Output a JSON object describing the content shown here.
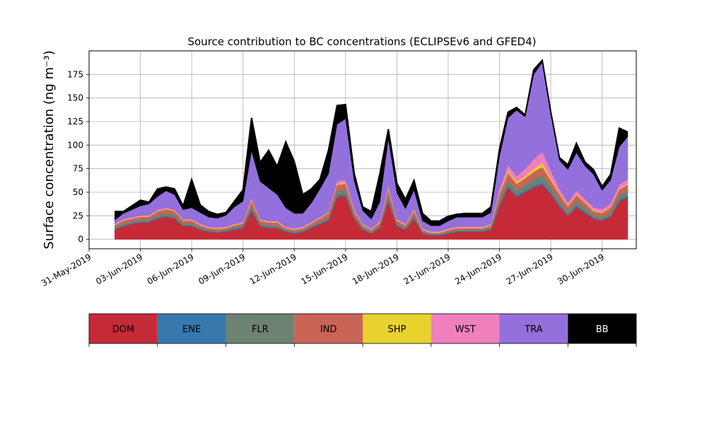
{
  "chart_data": {
    "type": "area",
    "stacked": true,
    "title": "Source contribution to BC concentrations (ECLIPSEv6 and GFED4)",
    "xlabel": "",
    "ylabel": "Surface concentration (ng m⁻³)",
    "ylim": [
      -10,
      200
    ],
    "xlim": [
      "2019-05-31",
      "2019-07-02"
    ],
    "grid": true,
    "legend_placement": "bottom (separate color bar)",
    "x_tick_labels": [
      "31-May-2019",
      "03-Jun-2019",
      "06-Jun-2019",
      "09-Jun-2019",
      "12-Jun-2019",
      "15-Jun-2019",
      "18-Jun-2019",
      "21-Jun-2019",
      "24-Jun-2019",
      "27-Jun-2019",
      "30-Jun-2019"
    ],
    "y_ticks": [
      0,
      25,
      50,
      75,
      100,
      125,
      150,
      175
    ],
    "x": [
      "2019-06-01T12",
      "2019-06-02T00",
      "2019-06-02T12",
      "2019-06-03T00",
      "2019-06-03T12",
      "2019-06-04T00",
      "2019-06-04T12",
      "2019-06-05T00",
      "2019-06-05T12",
      "2019-06-06T00",
      "2019-06-06T12",
      "2019-06-07T00",
      "2019-06-07T12",
      "2019-06-08T00",
      "2019-06-08T12",
      "2019-06-09T00",
      "2019-06-09T12",
      "2019-06-10T00",
      "2019-06-10T12",
      "2019-06-11T00",
      "2019-06-11T12",
      "2019-06-12T00",
      "2019-06-12T12",
      "2019-06-13T00",
      "2019-06-13T12",
      "2019-06-14T00",
      "2019-06-14T12",
      "2019-06-15T00",
      "2019-06-15T12",
      "2019-06-16T00",
      "2019-06-16T12",
      "2019-06-17T00",
      "2019-06-17T12",
      "2019-06-18T00",
      "2019-06-18T12",
      "2019-06-19T00",
      "2019-06-19T12",
      "2019-06-20T00",
      "2019-06-20T12",
      "2019-06-21T00",
      "2019-06-21T12",
      "2019-06-22T00",
      "2019-06-22T12",
      "2019-06-23T00",
      "2019-06-23T12",
      "2019-06-24T00",
      "2019-06-24T12",
      "2019-06-25T00",
      "2019-06-25T12",
      "2019-06-26T00",
      "2019-06-26T12",
      "2019-06-27T00",
      "2019-06-27T12",
      "2019-06-28T00",
      "2019-06-28T12",
      "2019-06-29T00",
      "2019-06-29T12",
      "2019-06-30T00",
      "2019-06-30T12",
      "2019-07-01T00",
      "2019-07-01T12"
    ],
    "series": [
      {
        "name": "DOM",
        "color": "#c62a37",
        "values": [
          10,
          14,
          16,
          18,
          18,
          22,
          24,
          22,
          14,
          14,
          10,
          8,
          7,
          8,
          10,
          12,
          30,
          14,
          12,
          12,
          8,
          6,
          8,
          12,
          16,
          20,
          45,
          46,
          22,
          10,
          6,
          12,
          40,
          14,
          10,
          22,
          6,
          4,
          4,
          6,
          8,
          8,
          8,
          8,
          10,
          35,
          55,
          45,
          50,
          55,
          58,
          48,
          35,
          25,
          34,
          28,
          22,
          20,
          24,
          40,
          45
        ]
      },
      {
        "name": "ENE",
        "color": "#3778ad",
        "values": [
          1,
          1,
          1,
          1,
          1,
          1,
          1,
          1,
          1,
          1,
          1,
          1,
          1,
          1,
          1,
          1,
          2,
          1,
          1,
          1,
          1,
          1,
          1,
          1,
          1,
          1,
          2,
          2,
          1,
          1,
          1,
          1,
          2,
          1,
          1,
          1,
          1,
          1,
          1,
          1,
          1,
          1,
          1,
          1,
          1,
          2,
          2,
          2,
          2,
          2,
          2,
          2,
          2,
          1,
          2,
          2,
          1,
          1,
          1,
          2,
          2
        ]
      },
      {
        "name": "FLR",
        "color": "#6e8271",
        "values": [
          2,
          2,
          2,
          2,
          2,
          3,
          3,
          3,
          2,
          2,
          2,
          1,
          1,
          1,
          2,
          2,
          4,
          2,
          2,
          2,
          1,
          1,
          1,
          2,
          2,
          3,
          5,
          5,
          3,
          2,
          1,
          2,
          5,
          2,
          2,
          3,
          1,
          1,
          1,
          1,
          1,
          1,
          1,
          1,
          2,
          5,
          6,
          5,
          6,
          7,
          8,
          6,
          5,
          4,
          5,
          4,
          3,
          3,
          4,
          5,
          5
        ]
      },
      {
        "name": "IND",
        "color": "#c96557",
        "values": [
          2,
          3,
          3,
          3,
          3,
          4,
          4,
          4,
          3,
          3,
          2,
          2,
          2,
          2,
          2,
          2,
          5,
          3,
          3,
          3,
          2,
          2,
          2,
          2,
          3,
          4,
          6,
          6,
          4,
          2,
          2,
          3,
          6,
          3,
          2,
          4,
          2,
          1,
          1,
          2,
          2,
          2,
          2,
          2,
          2,
          6,
          8,
          7,
          7,
          8,
          9,
          7,
          6,
          5,
          6,
          5,
          4,
          4,
          5,
          6,
          6
        ]
      },
      {
        "name": "SHP",
        "color": "#e8d22e",
        "values": [
          0.5,
          0.5,
          0.5,
          0.5,
          0.5,
          0.5,
          0.5,
          0.5,
          0.5,
          0.5,
          0.5,
          0.5,
          0.5,
          0.5,
          0.5,
          0.5,
          1,
          0.5,
          0.5,
          0.5,
          0.5,
          0.5,
          0.5,
          0.5,
          0.5,
          0.5,
          1,
          1,
          0.5,
          0.5,
          0.5,
          0.5,
          1,
          0.5,
          0.5,
          0.5,
          0.5,
          0.5,
          0.5,
          0.5,
          0.5,
          0.5,
          0.5,
          0.5,
          0.5,
          1,
          2,
          2,
          2,
          3,
          4,
          2,
          1,
          1,
          1,
          1,
          1,
          1,
          1,
          1,
          1
        ]
      },
      {
        "name": "WST",
        "color": "#f07fbe",
        "values": [
          1,
          1,
          1,
          1,
          1,
          1,
          1,
          1,
          1,
          1,
          1,
          1,
          1,
          1,
          1,
          1,
          2,
          1,
          1,
          1,
          1,
          1,
          1,
          1,
          1,
          1,
          3,
          3,
          2,
          1,
          1,
          1,
          3,
          1,
          1,
          2,
          1,
          1,
          1,
          1,
          1,
          1,
          1,
          1,
          1,
          4,
          6,
          6,
          8,
          10,
          12,
          8,
          5,
          3,
          4,
          3,
          3,
          3,
          3,
          4,
          5
        ]
      },
      {
        "name": "TRA",
        "color": "#9370db",
        "values": [
          4,
          6,
          8,
          10,
          12,
          14,
          18,
          16,
          10,
          12,
          12,
          10,
          10,
          12,
          18,
          22,
          50,
          40,
          35,
          28,
          20,
          16,
          14,
          20,
          30,
          40,
          60,
          65,
          30,
          14,
          10,
          20,
          50,
          28,
          16,
          20,
          8,
          6,
          6,
          8,
          10,
          10,
          10,
          10,
          12,
          35,
          50,
          70,
          55,
          90,
          95,
          60,
          30,
          35,
          40,
          35,
          35,
          20,
          25,
          40,
          45
        ]
      },
      {
        "name": "BB",
        "color": "#000000",
        "values": [
          9,
          2,
          4,
          6,
          2,
          8,
          4,
          6,
          4,
          30,
          8,
          6,
          4,
          3,
          6,
          12,
          35,
          20,
          40,
          30,
          70,
          55,
          20,
          15,
          10,
          25,
          20,
          15,
          8,
          4,
          8,
          30,
          10,
          10,
          10,
          10,
          8,
          5,
          5,
          5,
          3,
          4,
          4,
          4,
          6,
          8,
          6,
          3,
          2,
          5,
          2,
          2,
          3,
          5,
          10,
          4,
          5,
          4,
          6,
          20,
          5
        ]
      }
    ]
  }
}
